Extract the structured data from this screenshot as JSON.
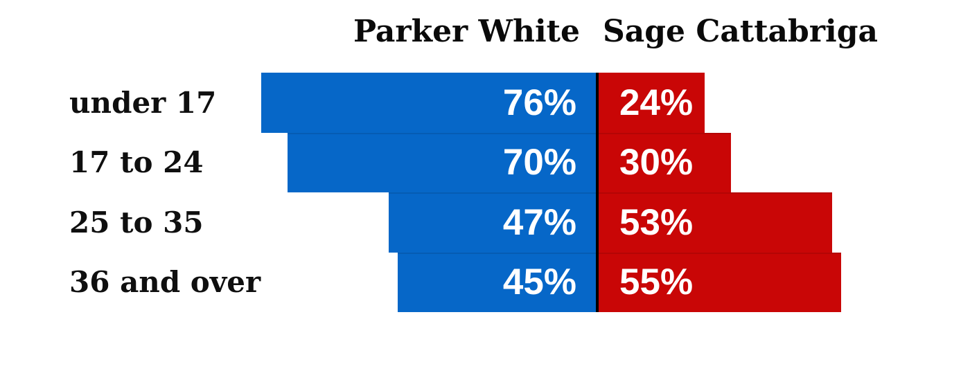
{
  "chart_data": {
    "type": "bar",
    "variant": "diverging-horizontal",
    "title": "",
    "categories": [
      "under 17",
      "17 to 24",
      "25 to 35",
      "36 and over"
    ],
    "series": [
      {
        "name": "Parker White",
        "side": "left",
        "color": "#0667c8",
        "values": [
          76,
          70,
          47,
          45
        ]
      },
      {
        "name": "Sage Cattabriga",
        "side": "right",
        "color": "#c90606",
        "values": [
          24,
          30,
          53,
          55
        ]
      }
    ],
    "value_suffix": "%",
    "value_label_color": "#ffffff",
    "category_label_color": "#0f0f0f",
    "header_label_color": "#0a0a0a",
    "divider_color": "#000000",
    "background_color": "#ffffff",
    "legend_position": "top",
    "axes": "none",
    "grid": false,
    "xlim_pct": [
      0,
      100
    ]
  }
}
